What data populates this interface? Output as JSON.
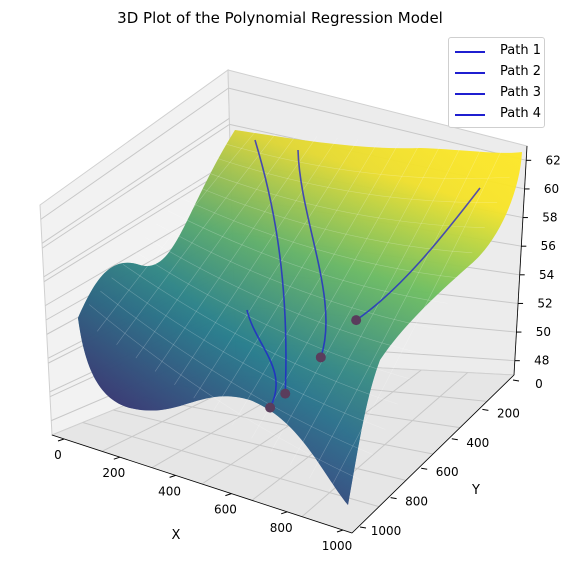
{
  "chart_data": {
    "type": "surface3d",
    "title": "3D Plot of the Polynomial Regression Model",
    "xlabel": "X",
    "ylabel": "Y",
    "zlabel": "",
    "xlim": [
      0,
      1000
    ],
    "ylim": [
      0,
      1000
    ],
    "zlim": [
      47,
      63
    ],
    "x_ticks": [
      "0",
      "200",
      "400",
      "600",
      "800",
      "1000"
    ],
    "y_ticks": [
      "0",
      "200",
      "400",
      "600",
      "800",
      "1000"
    ],
    "z_ticks": [
      "48",
      "50",
      "52",
      "54",
      "56",
      "58",
      "60",
      "62"
    ],
    "colormap": "viridis",
    "grid": true,
    "legend_position": "top-right",
    "series": [
      {
        "name": "Path 1",
        "color": "#1f1fd0",
        "end_marker": [
          520,
          640,
          49.5
        ]
      },
      {
        "name": "Path 2",
        "color": "#1f1fd0",
        "end_marker": [
          560,
          620,
          50.5
        ]
      },
      {
        "name": "Path 3",
        "color": "#1f1fd0",
        "end_marker": [
          600,
          480,
          52.0
        ]
      },
      {
        "name": "Path 4",
        "color": "#1f1fd0",
        "end_marker": [
          640,
          340,
          53.5
        ]
      }
    ]
  }
}
